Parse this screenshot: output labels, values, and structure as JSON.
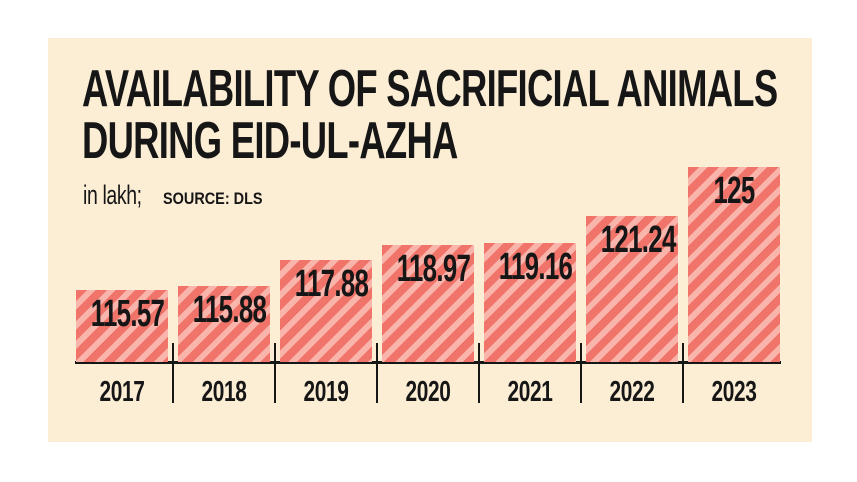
{
  "header": {
    "title_line1": "AVAILABILITY OF SACRIFICIAL ANIMALS",
    "title_line2": "DURING EID-UL-AZHA",
    "subtitle_unit": "in lakh;",
    "subtitle_source": "SOURCE: DLS"
  },
  "colors": {
    "page_background": "#ffffff",
    "card_background": "#fcedd5",
    "stripe_dark": "#f0746a",
    "stripe_light": "#f9b4ab",
    "text": "#161616",
    "axis": "#161616"
  },
  "chart_data": {
    "type": "bar",
    "title": "AVAILABILITY OF SACRIFICIAL ANIMALS DURING EID-UL-AZHA",
    "unit_note": "in lakh",
    "source": "SOURCE: DLS",
    "categories": [
      "2017",
      "2018",
      "2019",
      "2020",
      "2021",
      "2022",
      "2023"
    ],
    "values": [
      115.57,
      115.88,
      117.88,
      118.97,
      119.16,
      121.24,
      125
    ],
    "value_labels": [
      "115.57",
      "115.88",
      "117.88",
      "118.97",
      "119.16",
      "121.24",
      "125"
    ],
    "xlabel": "",
    "ylabel": "",
    "ylim": [
      110,
      125
    ],
    "grid": false,
    "legend": false,
    "bar_pattern": "diagonal-stripes",
    "value_label_position": "inside-top"
  }
}
